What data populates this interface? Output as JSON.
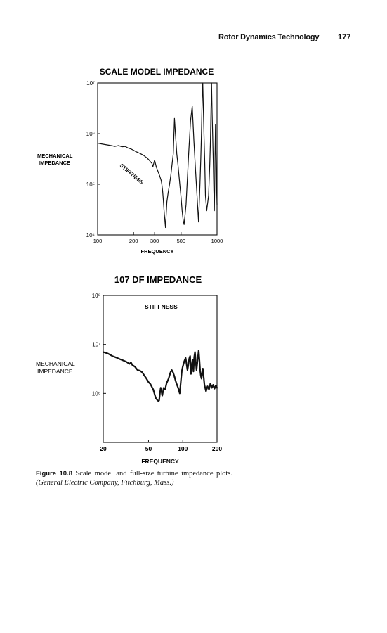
{
  "header": {
    "running_title": "Rotor Dynamics Technology",
    "page_number": "177"
  },
  "figure": {
    "caption_label": "Figure 10.8",
    "caption_text": "Scale model and full-size turbine impedance plots.",
    "caption_source": "(General Electric Company, Fitchburg, Mass.)"
  },
  "chart_data": [
    {
      "type": "line",
      "title": "SCALE MODEL IMPEDANCE",
      "xlabel": "FREQUENCY",
      "ylabel": "MECHANICAL IMPEDANCE",
      "xscale": "log",
      "yscale": "log",
      "xlim": [
        100,
        1000
      ],
      "ylim": [
        10000,
        10000000
      ],
      "xticks": [
        "100",
        "200",
        "300",
        "500",
        "1000"
      ],
      "xtick_values": [
        100,
        200,
        300,
        500,
        1000
      ],
      "yticks": [
        "10⁷",
        "10⁶",
        "10⁵",
        "10⁴"
      ],
      "ytick_values": [
        10000000,
        1000000,
        100000,
        10000
      ],
      "annotations": [
        "STIFFNESS"
      ],
      "grid": false,
      "series": [
        {
          "x": [
            100,
            110,
            120,
            130,
            140,
            150,
            160,
            170,
            180,
            190,
            200,
            210,
            220,
            240,
            260,
            270,
            280,
            285,
            290,
            300,
            310,
            320,
            330,
            340,
            345,
            350,
            355,
            360,
            370,
            380,
            390,
            400,
            410,
            420,
            430,
            440,
            450,
            460,
            470,
            480,
            490,
            500,
            510,
            520,
            530,
            540,
            550,
            560,
            570,
            580,
            600,
            620,
            640,
            660,
            680,
            700,
            720,
            730,
            740,
            750,
            760,
            770,
            780,
            790,
            800,
            820,
            850,
            870,
            880,
            890,
            900,
            910,
            920,
            930,
            940,
            950,
            960,
            970,
            980,
            990,
            1000
          ],
          "y": [
            650000,
            620000,
            600000,
            580000,
            560000,
            580000,
            550000,
            560000,
            520000,
            500000,
            470000,
            440000,
            420000,
            380000,
            330000,
            300000,
            270000,
            260000,
            220000,
            300000,
            220000,
            180000,
            150000,
            120000,
            100000,
            75000,
            50000,
            30000,
            14000,
            45000,
            70000,
            100000,
            150000,
            250000,
            400000,
            2000000,
            900000,
            400000,
            250000,
            150000,
            90000,
            55000,
            30000,
            20000,
            16000,
            25000,
            40000,
            90000,
            200000,
            450000,
            1800000,
            3500000,
            700000,
            200000,
            60000,
            18000,
            100000,
            300000,
            1000000,
            5000000,
            10000000,
            2500000,
            700000,
            250000,
            60000,
            30000,
            60000,
            250000,
            700000,
            3000000,
            10000000,
            2500000,
            900000,
            300000,
            80000,
            30000,
            200000,
            1500000,
            400000,
            100000,
            40000
          ]
        }
      ]
    },
    {
      "type": "line",
      "title": "107 DF IMPEDANCE",
      "xlabel": "FREQUENCY",
      "ylabel": "MECHANICAL IMPEDANCE",
      "xscale": "log",
      "yscale": "log",
      "xlim": [
        20,
        200
      ],
      "ylim": [
        100000,
        100000000
      ],
      "xticks": [
        "20",
        "50",
        "100",
        "200"
      ],
      "xtick_values": [
        20,
        50,
        100,
        200
      ],
      "yticks": [
        "10⁸",
        "10⁷",
        "10⁶"
      ],
      "ytick_values": [
        100000000,
        10000000,
        1000000
      ],
      "annotations": [
        "STIFFNESS"
      ],
      "grid": false,
      "series": [
        {
          "x": [
            20,
            22,
            24,
            26,
            28,
            30,
            32,
            34,
            35,
            36,
            38,
            40,
            42,
            44,
            46,
            48,
            50,
            52,
            54,
            55,
            56,
            57,
            58,
            60,
            61,
            62,
            63,
            64,
            65,
            66,
            68,
            70,
            72,
            75,
            78,
            80,
            82,
            84,
            86,
            88,
            90,
            92,
            94,
            96,
            98,
            100,
            103,
            106,
            108,
            110,
            112,
            114,
            116,
            118,
            120,
            122,
            124,
            126,
            128,
            130,
            132,
            135,
            138,
            140,
            142,
            144,
            146,
            148,
            150,
            155,
            160,
            165,
            170,
            175,
            180,
            185,
            190,
            195,
            200
          ],
          "y": [
            7000000,
            6500000,
            5800000,
            5400000,
            5000000,
            4700000,
            4400000,
            4000000,
            4300000,
            3800000,
            3500000,
            3000000,
            2900000,
            2700000,
            2300000,
            2000000,
            1700000,
            1550000,
            1300000,
            1200000,
            1050000,
            900000,
            800000,
            720000,
            700000,
            720000,
            1000000,
            1300000,
            1100000,
            900000,
            1300000,
            1200000,
            1600000,
            2000000,
            2700000,
            3000000,
            2700000,
            2300000,
            1900000,
            1600000,
            1400000,
            1200000,
            1000000,
            1700000,
            2800000,
            3500000,
            4500000,
            5300000,
            4000000,
            3000000,
            3800000,
            5200000,
            5800000,
            2500000,
            3700000,
            4900000,
            2800000,
            5500000,
            7000000,
            4500000,
            3000000,
            4700000,
            7500000,
            4900000,
            3000000,
            2300000,
            2000000,
            2600000,
            3200000,
            1500000,
            1100000,
            1400000,
            1200000,
            1600000,
            1300000,
            1500000,
            1250000,
            1450000,
            1300000
          ]
        }
      ]
    }
  ]
}
